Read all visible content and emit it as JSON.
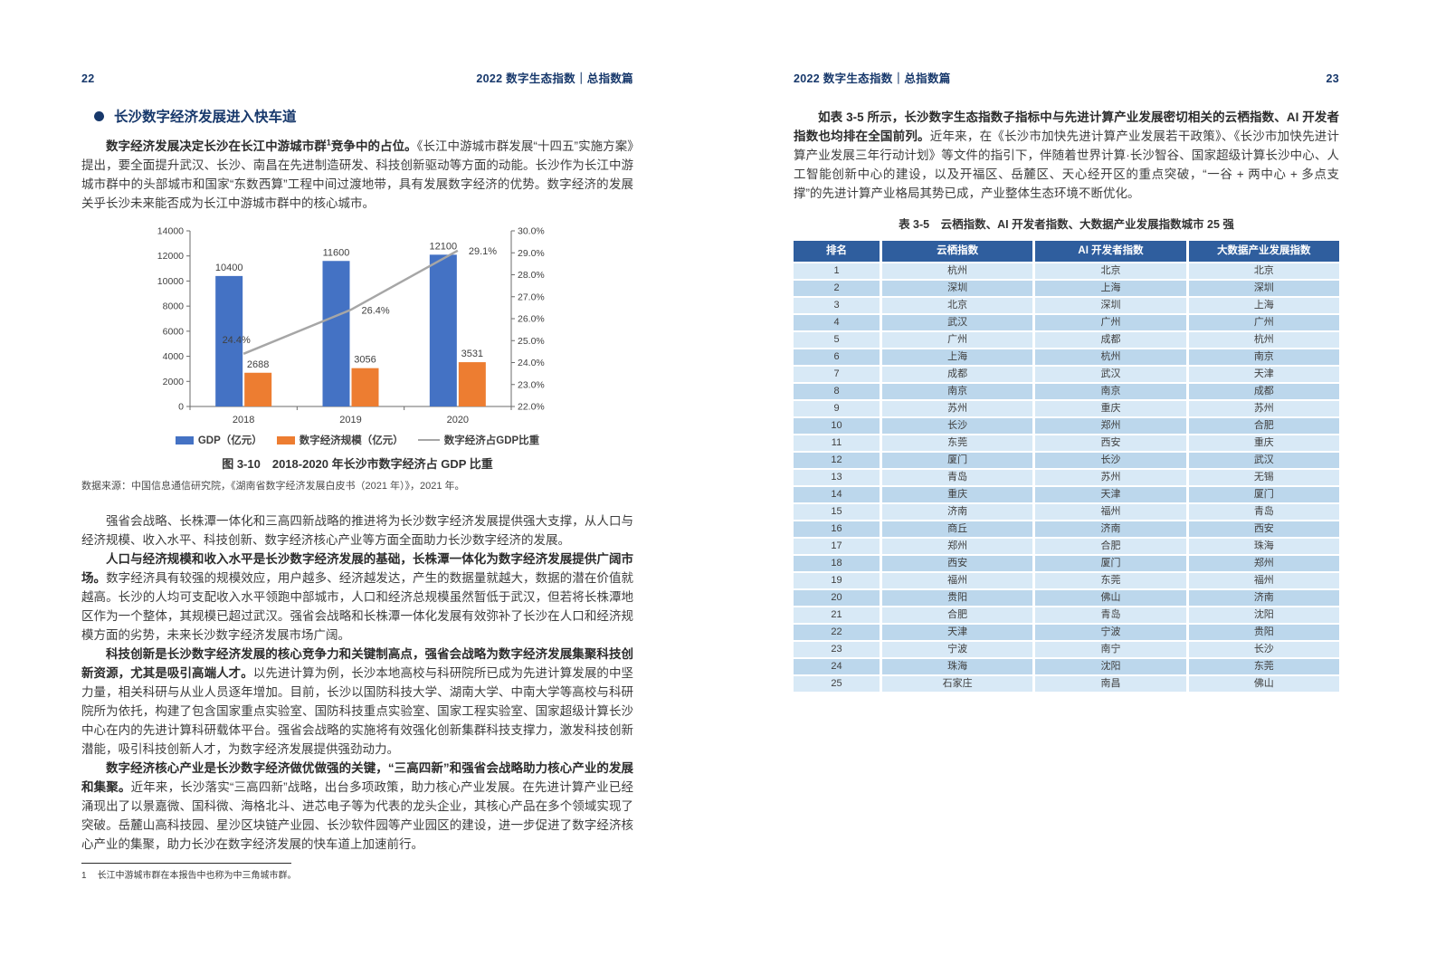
{
  "left_page": {
    "page_number": "22",
    "header": "2022 数字生态指数｜总指数篇",
    "section_title": "长沙数字经济发展进入快车道",
    "p1": {
      "bold_a": "数字经济发展决定长沙在长江中游城市群",
      "sup": "1",
      "bold_b": "竞争中的占位。",
      "rest": "《长江中游城市群发展“十四五”实施方案》提出，要全面提升武汉、长沙、南昌在先进制造研发、科技创新驱动等方面的动能。长沙作为长江中游城市群中的头部城市和国家“东数西算”工程中间过渡地带，具有发展数字经济的优势。数字经济的发展关乎长沙未来能否成为长江中游城市群中的核心城市。"
    },
    "figure_caption": "图 3-10　2018-2020 年长沙市数字经济占 GDP 比重",
    "figure_source": "数据来源：中国信息通信研究院，《湖南省数字经济发展白皮书（2021 年）》，2021 年。",
    "p2": {
      "rest": "强省会战略、长株潭一体化和三高四新战略的推进将为长沙数字经济发展提供强大支撑，从人口与经济规模、收入水平、科技创新、数字经济核心产业等方面全面助力长沙数字经济的发展。"
    },
    "p3": {
      "bold": "人口与经济规模和收入水平是长沙数字经济发展的基础，长株潭一体化为数字经济发展提供广阔市场。",
      "rest": "数字经济具有较强的规模效应，用户越多、经济越发达，产生的数据量就越大，数据的潜在价值就越高。长沙的人均可支配收入水平领跑中部城市，人口和经济总规模虽然暂低于武汉，但若将长株潭地区作为一个整体，其规模已超过武汉。强省会战略和长株潭一体化发展有效弥补了长沙在人口和经济规模方面的劣势，未来长沙数字经济发展市场广阔。"
    },
    "p4": {
      "bold": "科技创新是长沙数字经济发展的核心竞争力和关键制高点，强省会战略为数字经济发展集聚科技创新资源，尤其是吸引高端人才。",
      "rest": "以先进计算为例，长沙本地高校与科研院所已成为先进计算发展的中坚力量，相关科研与从业人员逐年增加。目前，长沙以国防科技大学、湖南大学、中南大学等高校与科研院所为依托，构建了包含国家重点实验室、国防科技重点实验室、国家工程实验室、国家超级计算长沙中心在内的先进计算科研载体平台。强省会战略的实施将有效强化创新集群科技支撑力，激发科技创新潜能，吸引科技创新人才，为数字经济发展提供强劲动力。"
    },
    "p5": {
      "bold": "数字经济核心产业是长沙数字经济做优做强的关键，“三高四新”和强省会战略助力核心产业的发展和集聚。",
      "rest": "近年来，长沙落实“三高四新”战略，出台多项政策，助力核心产业发展。在先进计算产业已经涌现出了以景嘉微、国科微、海格北斗、进芯电子等为代表的龙头企业，其核心产品在多个领域实现了突破。岳麓山高科技园、星沙区块链产业园、长沙软件园等产业园区的建设，进一步促进了数字经济核心产业的集聚，助力长沙在数字经济发展的快车道上加速前行。"
    },
    "footnote": {
      "marker": "1",
      "text": "长江中游城市群在本报告中也称为中三角城市群。"
    }
  },
  "right_page": {
    "page_number": "23",
    "header": "2022 数字生态指数｜总指数篇",
    "p1": {
      "bold": "如表 3-5 所示，长沙数字生态指数子指标中与先进计算产业发展密切相关的云栖指数、AI 开发者指数也均排在全国前列。",
      "rest": "近年来，在《长沙市加快先进计算产业发展若干政策》、《长沙市加快先进计算产业发展三年行动计划》等文件的指引下，伴随着世界计算·长沙智谷、国家超级计算长沙中心、人工智能创新中心的建设，以及开福区、岳麓区、天心经开区的重点突破，“一谷 + 两中心 + 多点支撑”的先进计算产业格局其势已成，产业整体生态环境不断优化。"
    },
    "table": {
      "caption": "表 3-5　云栖指数、AI 开发者指数、大数据产业发展指数城市 25 强",
      "headers": [
        "排名",
        "云栖指数",
        "AI 开发者指数",
        "大数据产业发展指数"
      ],
      "rows": [
        [
          "1",
          "杭州",
          "北京",
          "北京"
        ],
        [
          "2",
          "深圳",
          "上海",
          "深圳"
        ],
        [
          "3",
          "北京",
          "深圳",
          "上海"
        ],
        [
          "4",
          "武汉",
          "广州",
          "广州"
        ],
        [
          "5",
          "广州",
          "成都",
          "杭州"
        ],
        [
          "6",
          "上海",
          "杭州",
          "南京"
        ],
        [
          "7",
          "成都",
          "武汉",
          "天津"
        ],
        [
          "8",
          "南京",
          "南京",
          "成都"
        ],
        [
          "9",
          "苏州",
          "重庆",
          "苏州"
        ],
        [
          "10",
          "长沙",
          "郑州",
          "合肥"
        ],
        [
          "11",
          "东莞",
          "西安",
          "重庆"
        ],
        [
          "12",
          "厦门",
          "长沙",
          "武汉"
        ],
        [
          "13",
          "青岛",
          "苏州",
          "无锡"
        ],
        [
          "14",
          "重庆",
          "天津",
          "厦门"
        ],
        [
          "15",
          "济南",
          "福州",
          "青岛"
        ],
        [
          "16",
          "商丘",
          "济南",
          "西安"
        ],
        [
          "17",
          "郑州",
          "合肥",
          "珠海"
        ],
        [
          "18",
          "西安",
          "厦门",
          "郑州"
        ],
        [
          "19",
          "福州",
          "东莞",
          "福州"
        ],
        [
          "20",
          "贵阳",
          "佛山",
          "济南"
        ],
        [
          "21",
          "合肥",
          "青岛",
          "沈阳"
        ],
        [
          "22",
          "天津",
          "宁波",
          "贵阳"
        ],
        [
          "23",
          "宁波",
          "南宁",
          "长沙"
        ],
        [
          "24",
          "珠海",
          "沈阳",
          "东莞"
        ],
        [
          "25",
          "石家庄",
          "南昌",
          "佛山"
        ]
      ],
      "colors": {
        "header_bg": "#2f5e9e",
        "row_light": "#d8e9f6",
        "row_dark": "#bcd7ec"
      }
    }
  },
  "chart_data": {
    "type": "bar",
    "title": "图 3-10　2018-2020 年长沙市数字经济占 GDP 比重",
    "categories": [
      "2018",
      "2019",
      "2020"
    ],
    "series": [
      {
        "name": "GDP（亿元）",
        "kind": "bar",
        "axis": "left",
        "color": "#4472C4",
        "values": [
          10400,
          11600,
          12100
        ]
      },
      {
        "name": "数字经济规模（亿元）",
        "kind": "bar",
        "axis": "left",
        "color": "#ED7D31",
        "values": [
          2688,
          3056,
          3531
        ]
      },
      {
        "name": "数字经济占GDP比重",
        "kind": "line",
        "axis": "right",
        "color": "#A6A6A6",
        "values": [
          24.4,
          26.4,
          29.1
        ],
        "labels": [
          "24.4%",
          "26.4%",
          "29.1%"
        ]
      }
    ],
    "left_axis": {
      "min": 0,
      "max": 14000,
      "ticks": [
        "0",
        "2000",
        "4000",
        "6000",
        "8000",
        "10000",
        "12000",
        "14000"
      ]
    },
    "right_axis": {
      "min": 22,
      "max": 30,
      "ticks": [
        "22.0%",
        "23.0%",
        "24.0%",
        "25.0%",
        "26.0%",
        "27.0%",
        "28.0%",
        "29.0%",
        "30.0%"
      ]
    },
    "grid": false,
    "legend_position": "bottom"
  }
}
